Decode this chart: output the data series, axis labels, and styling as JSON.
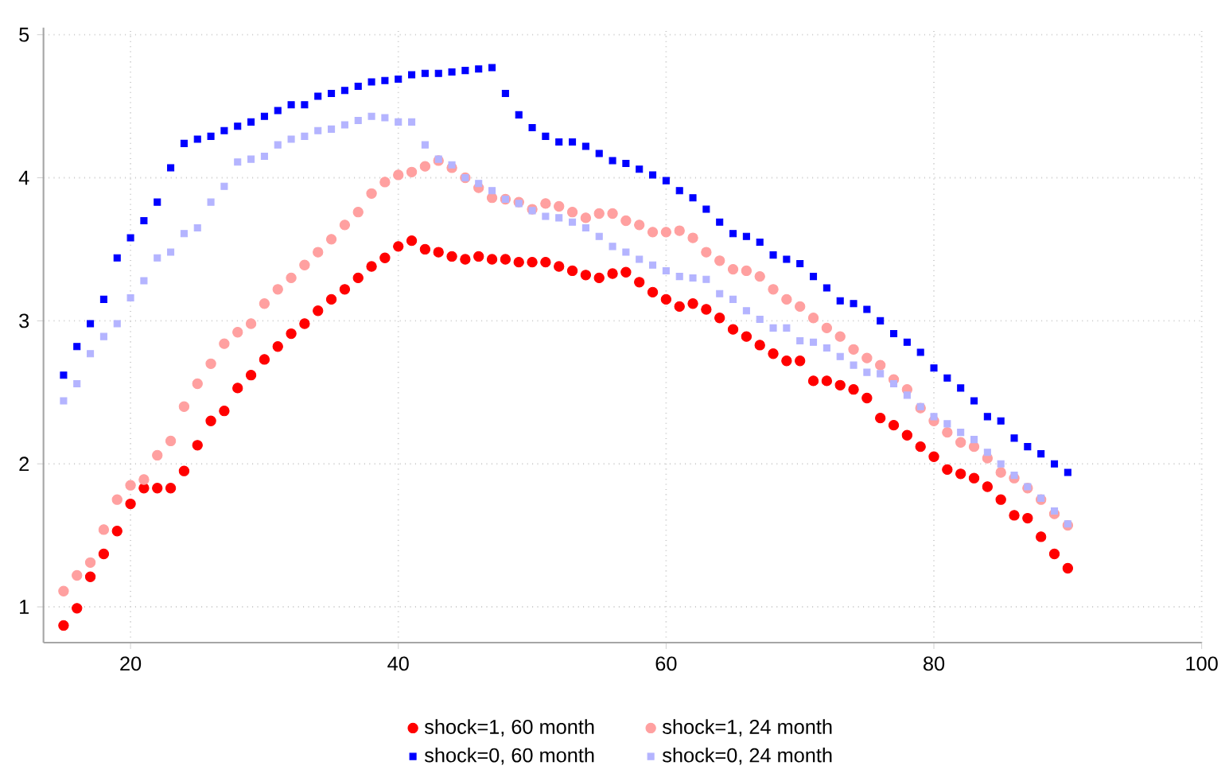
{
  "chart_data": {
    "type": "scatter",
    "x": [
      15,
      16,
      17,
      18,
      19,
      20,
      21,
      22,
      23,
      24,
      25,
      26,
      27,
      28,
      29,
      30,
      31,
      32,
      33,
      34,
      35,
      36,
      37,
      38,
      39,
      40,
      41,
      42,
      43,
      44,
      45,
      46,
      47,
      48,
      49,
      50,
      51,
      52,
      53,
      54,
      55,
      56,
      57,
      58,
      59,
      60,
      61,
      62,
      63,
      64,
      65,
      66,
      67,
      68,
      69,
      70,
      71,
      72,
      73,
      74,
      75,
      76,
      77,
      78,
      79,
      80,
      81,
      82,
      83,
      84,
      85,
      86,
      87,
      88,
      89,
      90
    ],
    "series": [
      {
        "name": "shock=1, 60 month",
        "color": "#ff0000",
        "marker": "circle",
        "values": [
          0.87,
          0.99,
          1.21,
          1.37,
          1.53,
          1.72,
          1.83,
          1.83,
          1.83,
          1.95,
          2.13,
          2.3,
          2.37,
          2.53,
          2.62,
          2.73,
          2.82,
          2.91,
          2.98,
          3.07,
          3.15,
          3.22,
          3.3,
          3.38,
          3.44,
          3.52,
          3.56,
          3.5,
          3.48,
          3.45,
          3.43,
          3.45,
          3.43,
          3.43,
          3.41,
          3.41,
          3.41,
          3.38,
          3.35,
          3.32,
          3.3,
          3.33,
          3.34,
          3.27,
          3.2,
          3.15,
          3.1,
          3.12,
          3.08,
          3.02,
          2.94,
          2.89,
          2.83,
          2.77,
          2.72,
          2.72,
          2.58,
          2.58,
          2.55,
          2.52,
          2.46,
          2.32,
          2.27,
          2.2,
          2.12,
          2.05,
          1.96,
          1.93,
          1.9,
          1.84,
          1.75,
          1.64,
          1.62,
          1.49,
          1.37,
          1.27
        ]
      },
      {
        "name": "shock=1, 24 month",
        "color": "#ffa0a0",
        "marker": "circle",
        "values": [
          1.11,
          1.22,
          1.31,
          1.54,
          1.75,
          1.85,
          1.89,
          2.06,
          2.16,
          2.4,
          2.56,
          2.7,
          2.84,
          2.92,
          2.98,
          3.12,
          3.22,
          3.3,
          3.39,
          3.48,
          3.57,
          3.67,
          3.76,
          3.89,
          3.97,
          4.02,
          4.04,
          4.08,
          4.12,
          4.07,
          4.0,
          3.93,
          3.86,
          3.85,
          3.83,
          3.78,
          3.82,
          3.8,
          3.76,
          3.72,
          3.75,
          3.75,
          3.7,
          3.67,
          3.62,
          3.62,
          3.63,
          3.58,
          3.48,
          3.42,
          3.36,
          3.35,
          3.31,
          3.22,
          3.15,
          3.1,
          3.02,
          2.95,
          2.89,
          2.8,
          2.74,
          2.69,
          2.59,
          2.52,
          2.39,
          2.3,
          2.22,
          2.15,
          2.12,
          2.04,
          1.94,
          1.9,
          1.83,
          1.75,
          1.65,
          1.57
        ]
      },
      {
        "name": "shock=0, 60 month",
        "color": "#0000ff",
        "marker": "square",
        "values": [
          2.62,
          2.82,
          2.98,
          3.15,
          3.44,
          3.58,
          3.7,
          3.83,
          4.07,
          4.24,
          4.27,
          4.29,
          4.33,
          4.36,
          4.39,
          4.43,
          4.47,
          4.51,
          4.51,
          4.57,
          4.59,
          4.61,
          4.64,
          4.67,
          4.68,
          4.69,
          4.72,
          4.73,
          4.73,
          4.74,
          4.75,
          4.76,
          4.77,
          4.59,
          4.44,
          4.35,
          4.29,
          4.25,
          4.25,
          4.22,
          4.17,
          4.12,
          4.1,
          4.06,
          4.02,
          3.98,
          3.91,
          3.86,
          3.78,
          3.69,
          3.61,
          3.59,
          3.55,
          3.46,
          3.43,
          3.4,
          3.31,
          3.23,
          3.14,
          3.12,
          3.08,
          3.0,
          2.91,
          2.85,
          2.78,
          2.67,
          2.6,
          2.53,
          2.44,
          2.33,
          2.3,
          2.18,
          2.12,
          2.07,
          2.0,
          1.94
        ]
      },
      {
        "name": "shock=0, 24 month",
        "color": "#b4b4ff",
        "marker": "square",
        "values": [
          2.44,
          2.56,
          2.77,
          2.89,
          2.98,
          3.16,
          3.28,
          3.44,
          3.48,
          3.61,
          3.65,
          3.83,
          3.94,
          4.11,
          4.13,
          4.15,
          4.23,
          4.27,
          4.29,
          4.33,
          4.34,
          4.37,
          4.4,
          4.43,
          4.42,
          4.39,
          4.39,
          4.23,
          4.13,
          4.09,
          4.0,
          3.96,
          3.91,
          3.85,
          3.82,
          3.77,
          3.73,
          3.72,
          3.69,
          3.65,
          3.59,
          3.52,
          3.48,
          3.43,
          3.39,
          3.35,
          3.31,
          3.3,
          3.29,
          3.19,
          3.15,
          3.07,
          3.01,
          2.95,
          2.95,
          2.86,
          2.85,
          2.81,
          2.75,
          2.69,
          2.64,
          2.63,
          2.56,
          2.48,
          2.4,
          2.33,
          2.28,
          2.22,
          2.17,
          2.08,
          2.0,
          1.92,
          1.84,
          1.76,
          1.67,
          1.58
        ]
      }
    ],
    "xlim": [
      13.5,
      100
    ],
    "ylim": [
      0.75,
      5.05
    ],
    "xticks": [
      20,
      40,
      60,
      80,
      100
    ],
    "yticks": [
      1,
      2,
      3,
      4,
      5
    ],
    "grid": true,
    "legend": "bottom"
  }
}
